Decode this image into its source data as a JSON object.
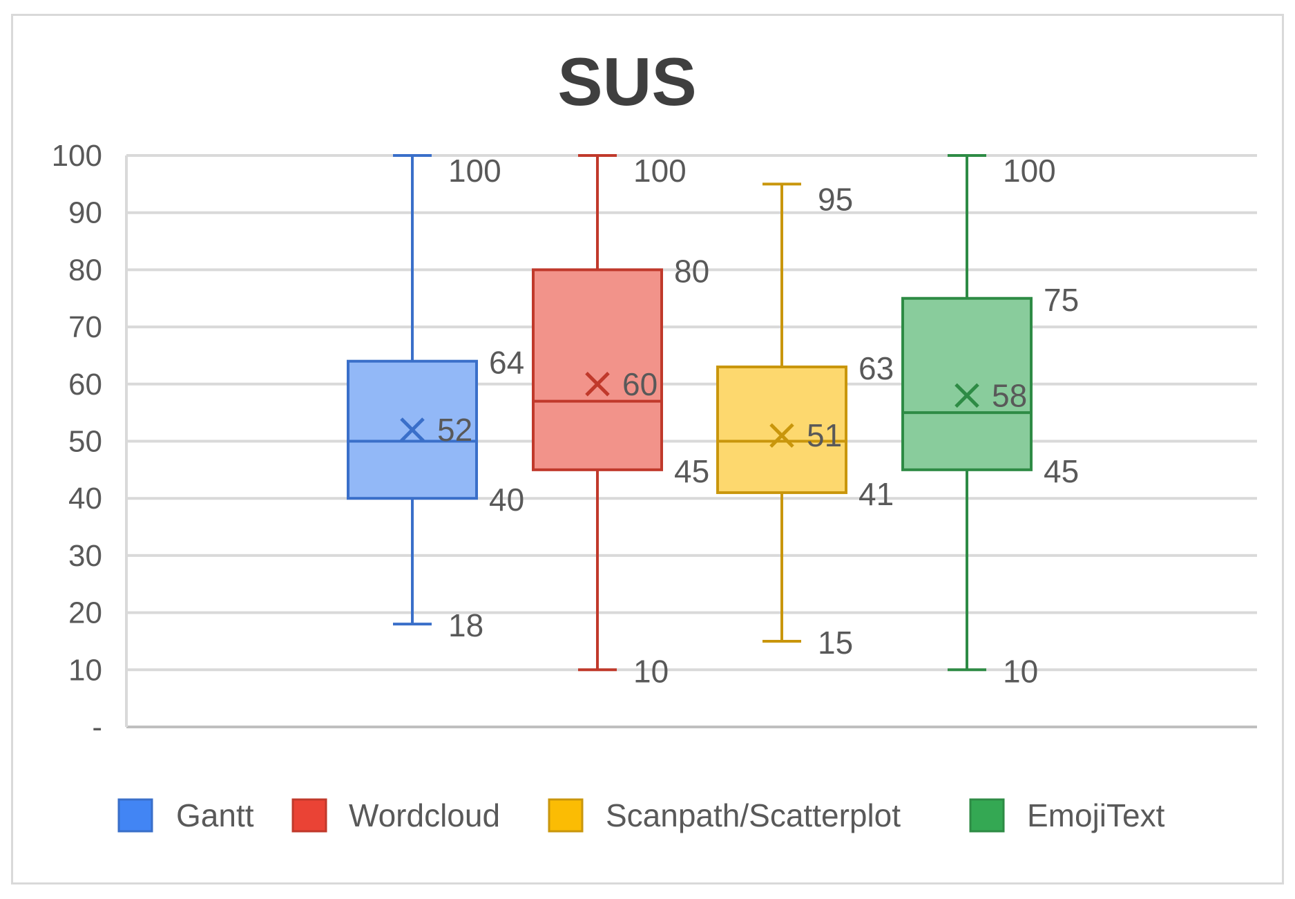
{
  "chart_data": {
    "type": "boxplot",
    "title": "SUS",
    "xlabel": "",
    "ylabel": "",
    "ylim": [
      0,
      100
    ],
    "yticks": [
      {
        "value": 100,
        "label": "100"
      },
      {
        "value": 90,
        "label": "90"
      },
      {
        "value": 80,
        "label": "80"
      },
      {
        "value": 70,
        "label": "70"
      },
      {
        "value": 60,
        "label": "60"
      },
      {
        "value": 50,
        "label": "50"
      },
      {
        "value": 40,
        "label": "40"
      },
      {
        "value": 30,
        "label": "30"
      },
      {
        "value": 20,
        "label": "20"
      },
      {
        "value": 10,
        "label": "10"
      },
      {
        "value": 0,
        "label": "-"
      }
    ],
    "grid": true,
    "legend_position": "bottom",
    "series": [
      {
        "name": "Gantt",
        "min": 18,
        "q1": 40,
        "median": 50,
        "q3": 64,
        "max": 100,
        "mean": 52,
        "labels": {
          "min": "18",
          "q1": "40",
          "q3": "64",
          "max": "100",
          "mean": "52"
        },
        "stroke": "#3a6fc9",
        "fill": "#92b8f7",
        "legend_color": "#4285f4"
      },
      {
        "name": "Wordcloud",
        "min": 10,
        "q1": 45,
        "median": 57,
        "q3": 80,
        "max": 100,
        "mean": 60,
        "labels": {
          "min": "10",
          "q1": "45",
          "q3": "80",
          "max": "100",
          "mean": "60"
        },
        "stroke": "#c0392b",
        "fill": "#f2938a",
        "legend_color": "#ea4335"
      },
      {
        "name": "Scanpath/Scatterplot",
        "min": 15,
        "q1": 41,
        "median": 50,
        "q3": 63,
        "max": 95,
        "mean": 51,
        "labels": {
          "min": "15",
          "q1": "41",
          "q3": "63",
          "max": "95",
          "mean": "51"
        },
        "stroke": "#c9960c",
        "fill": "#fdd86e",
        "legend_color": "#fbbc04"
      },
      {
        "name": "EmojiText",
        "min": 10,
        "q1": 45,
        "median": 55,
        "q3": 75,
        "max": 100,
        "mean": 58,
        "labels": {
          "min": "10",
          "q1": "45",
          "q3": "75",
          "max": "100",
          "mean": "58"
        },
        "stroke": "#2e8b45",
        "fill": "#89cc9c",
        "legend_color": "#34a853"
      }
    ]
  }
}
